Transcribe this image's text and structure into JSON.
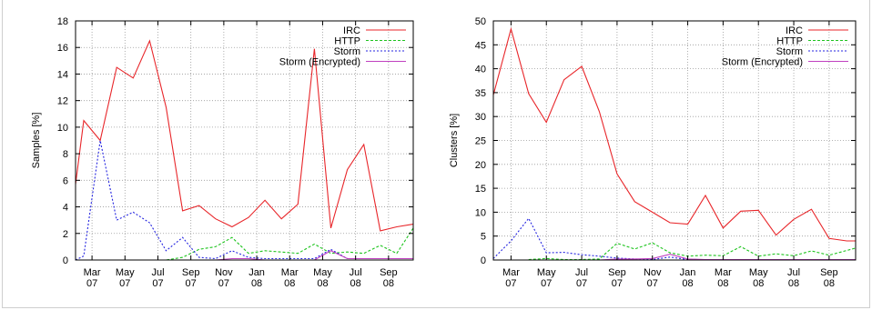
{
  "chart_data": [
    {
      "type": "line",
      "title": "",
      "xlabel": "",
      "ylabel": "Samples [%]",
      "ylim": [
        0,
        18
      ],
      "yticks": [
        0,
        2,
        4,
        6,
        8,
        10,
        12,
        14,
        16,
        18
      ],
      "xlim": [
        0,
        20.5
      ],
      "xticks": [
        {
          "pos": 1,
          "line1": "Mar",
          "line2": "07"
        },
        {
          "pos": 3,
          "line1": "May",
          "line2": "07"
        },
        {
          "pos": 5,
          "line1": "Jul",
          "line2": "07"
        },
        {
          "pos": 7,
          "line1": "Sep",
          "line2": "07"
        },
        {
          "pos": 9,
          "line1": "Nov",
          "line2": "07"
        },
        {
          "pos": 11,
          "line1": "Jan",
          "line2": "08"
        },
        {
          "pos": 13,
          "line1": "Mar",
          "line2": "08"
        },
        {
          "pos": 15,
          "line1": "May",
          "line2": "08"
        },
        {
          "pos": 17,
          "line1": "Jul",
          "line2": "08"
        },
        {
          "pos": 19,
          "line1": "Sep",
          "line2": "08"
        }
      ],
      "grid": true,
      "legend_position": "top-right",
      "series": [
        {
          "name": "IRC",
          "color": "#e8262a",
          "dash": "",
          "x": [
            0,
            0.5,
            1.5,
            2.5,
            3.5,
            4.5,
            5.5,
            6.5,
            7.5,
            8.5,
            9.5,
            10.5,
            11.5,
            12.5,
            13.5,
            14.5,
            15.5,
            16.5,
            17.5,
            18.5,
            19.5,
            20.5
          ],
          "y": [
            5.7,
            10.5,
            9.0,
            14.5,
            13.7,
            16.5,
            11.5,
            3.7,
            4.1,
            3.1,
            2.5,
            3.2,
            4.5,
            3.1,
            4.2,
            15.9,
            2.4,
            6.8,
            8.7,
            2.2,
            2.5,
            2.7
          ]
        },
        {
          "name": "HTTP",
          "color": "#1ec41e",
          "dash": "3,2",
          "x": [
            0,
            1.5,
            2.5,
            3.5,
            4.5,
            5.5,
            6.5,
            7.5,
            8.5,
            9.5,
            10.5,
            11.5,
            12.5,
            13.5,
            14.5,
            15.5,
            16.5,
            17.5,
            18.5,
            19.5,
            20.5
          ],
          "y": [
            0,
            0,
            0,
            0,
            0,
            0,
            0.2,
            0.8,
            1.0,
            1.7,
            0.5,
            0.7,
            0.6,
            0.5,
            1.2,
            0.5,
            0.6,
            0.5,
            1.1,
            0.5,
            2.4
          ]
        },
        {
          "name": "Storm",
          "color": "#2424e0",
          "dash": "2,2",
          "x": [
            0,
            0.5,
            1.5,
            2.5,
            3.5,
            4.5,
            5.5,
            6.5,
            7.5,
            8.5,
            9.5,
            10.5,
            11.5,
            12.5,
            13.5,
            14.5,
            15.5,
            16.5,
            17.5,
            18.5,
            19.5,
            20.5
          ],
          "y": [
            0,
            0.3,
            9.0,
            3.0,
            3.6,
            2.8,
            0.7,
            1.7,
            0.2,
            0.1,
            0.7,
            0.2,
            0.1,
            0.1,
            0.1,
            0.1,
            0.8,
            0.1,
            0.1,
            0.1,
            0.1,
            0.1
          ]
        },
        {
          "name": "Storm (Encrypted)",
          "color": "#c040c0",
          "dash": "",
          "x": [
            7.5,
            8.5,
            9.5,
            10.5,
            11.5,
            12.5,
            13.5,
            14.5,
            15.5,
            16.5,
            17.5,
            18.5,
            19.5,
            20.5
          ],
          "y": [
            0,
            0,
            0.1,
            0.1,
            0,
            0,
            0,
            0,
            0.7,
            0.1,
            0.1,
            0.1,
            0.1,
            0.1
          ]
        }
      ]
    },
    {
      "type": "line",
      "title": "",
      "xlabel": "",
      "ylabel": "Clusters [%]",
      "ylim": [
        0,
        50
      ],
      "yticks": [
        0,
        5,
        10,
        15,
        20,
        25,
        30,
        35,
        40,
        45,
        50
      ],
      "xlim": [
        0,
        20.5
      ],
      "xticks": [
        {
          "pos": 1,
          "line1": "Mar",
          "line2": "07"
        },
        {
          "pos": 3,
          "line1": "May",
          "line2": "07"
        },
        {
          "pos": 5,
          "line1": "Jul",
          "line2": "07"
        },
        {
          "pos": 7,
          "line1": "Sep",
          "line2": "07"
        },
        {
          "pos": 9,
          "line1": "Nov",
          "line2": "07"
        },
        {
          "pos": 11,
          "line1": "Jan",
          "line2": "08"
        },
        {
          "pos": 13,
          "line1": "Mar",
          "line2": "08"
        },
        {
          "pos": 15,
          "line1": "May",
          "line2": "08"
        },
        {
          "pos": 17,
          "line1": "Jul",
          "line2": "08"
        },
        {
          "pos": 19,
          "line1": "Sep",
          "line2": "08"
        }
      ],
      "grid": true,
      "legend_position": "top-right",
      "series": [
        {
          "name": "IRC",
          "color": "#e8262a",
          "dash": "",
          "x": [
            0,
            1,
            2,
            3,
            4,
            5,
            6,
            7,
            8,
            9,
            10,
            11,
            12,
            13,
            14,
            15,
            16,
            17,
            18,
            19,
            20,
            20.5
          ],
          "y": [
            34.5,
            48.3,
            34.8,
            28.8,
            37.7,
            40.5,
            31.0,
            18.0,
            12.2,
            10.0,
            7.8,
            7.5,
            13.5,
            6.7,
            10.2,
            10.4,
            5.2,
            8.5,
            10.6,
            4.5,
            4.0,
            4.0
          ]
        },
        {
          "name": "HTTP",
          "color": "#1ec41e",
          "dash": "3,2",
          "x": [
            2,
            3,
            4,
            5,
            6,
            7,
            8,
            9,
            10,
            11,
            12,
            13,
            14,
            15,
            16,
            17,
            18,
            19,
            20,
            20.5
          ],
          "y": [
            0.1,
            0.3,
            0.1,
            0.1,
            0.2,
            3.5,
            2.3,
            3.6,
            1.5,
            0.8,
            1.0,
            0.9,
            2.8,
            0.8,
            1.3,
            0.9,
            1.9,
            1.0,
            2.0,
            2.5
          ]
        },
        {
          "name": "Storm",
          "color": "#2424e0",
          "dash": "2,2",
          "x": [
            0,
            1,
            2,
            3,
            4,
            5,
            6,
            7,
            8,
            9,
            10,
            11,
            12,
            13,
            14,
            15,
            16,
            17,
            18,
            19,
            20,
            20.5
          ],
          "y": [
            0.3,
            4.0,
            8.7,
            1.5,
            1.6,
            1.1,
            0.8,
            0.4,
            0.2,
            0.1,
            0.6,
            0.1,
            0.1,
            0.1,
            0.1,
            0.1,
            0.1,
            0.1,
            0.1,
            0.1,
            0.1,
            0.1
          ]
        },
        {
          "name": "Storm (Encrypted)",
          "color": "#c040c0",
          "dash": "",
          "x": [
            6,
            7,
            8,
            9,
            10,
            11,
            12,
            13,
            14,
            15,
            16,
            17,
            18,
            19,
            20,
            20.5
          ],
          "y": [
            0,
            0.2,
            0.2,
            0.3,
            1.2,
            0.2,
            0.1,
            0.1,
            0.1,
            0.1,
            0.1,
            0.1,
            0.1,
            0.1,
            0.1,
            0.1
          ]
        }
      ]
    }
  ]
}
